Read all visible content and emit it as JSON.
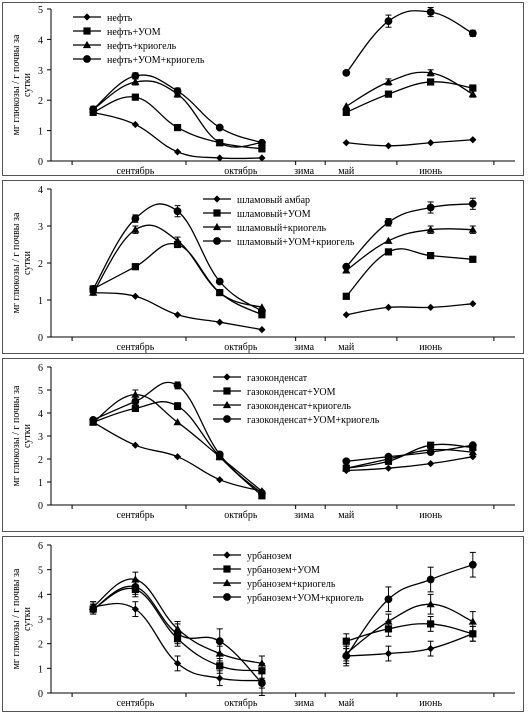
{
  "x_categories": [
    "сентябрь",
    "октябрь",
    "зима",
    "май",
    "июнь"
  ],
  "chart_data": [
    {
      "type": "line",
      "ylabel": "мг глюкозы / г почвы за сутки",
      "ylim": [
        0,
        5
      ],
      "yticks": [
        "0",
        "1",
        "2",
        "3",
        "4",
        "5"
      ],
      "legend_position": "top-left",
      "x": [
        1,
        2,
        3,
        4,
        5,
        7,
        8,
        9,
        10
      ],
      "series": [
        {
          "name": "нефть",
          "marker": "diamond",
          "values": [
            1.6,
            1.2,
            0.3,
            0.1,
            0.1,
            0.6,
            0.5,
            0.6,
            0.7
          ],
          "errors": [
            0,
            0,
            0,
            0,
            0,
            0,
            0,
            0,
            0
          ]
        },
        {
          "name": "нефть+УОМ",
          "marker": "square",
          "values": [
            1.6,
            2.1,
            1.1,
            0.6,
            0.4,
            1.6,
            2.2,
            2.6,
            2.4
          ],
          "errors": [
            0,
            0,
            0,
            0,
            0,
            0,
            0,
            0,
            0
          ]
        },
        {
          "name": "нефть+криогель",
          "marker": "triangle",
          "values": [
            1.7,
            2.6,
            2.2,
            0.6,
            0.6,
            1.8,
            2.6,
            2.9,
            2.2
          ],
          "errors": [
            0.1,
            0.1,
            0.1,
            0,
            0,
            0,
            0.1,
            0.1,
            0.1
          ]
        },
        {
          "name": "нефть+УОМ+криогель",
          "marker": "circle",
          "values": [
            1.7,
            2.8,
            2.3,
            1.1,
            0.6,
            2.9,
            4.6,
            4.9,
            4.2
          ],
          "errors": [
            0,
            0.1,
            0.1,
            0,
            0,
            0,
            0.2,
            0.15,
            0.1
          ]
        }
      ]
    },
    {
      "type": "line",
      "ylabel": "мг глюкозы / г почвы за сутки",
      "ylim": [
        0,
        4
      ],
      "yticks": [
        "0",
        "1",
        "2",
        "3",
        "4"
      ],
      "legend_position": "top-center",
      "x": [
        1,
        2,
        3,
        4,
        5,
        7,
        8,
        9,
        10
      ],
      "series": [
        {
          "name": "шламовый амбар",
          "marker": "diamond",
          "values": [
            1.2,
            1.1,
            0.6,
            0.4,
            0.2,
            0.6,
            0.8,
            0.8,
            0.9
          ],
          "errors": [
            0,
            0,
            0,
            0,
            0,
            0,
            0,
            0,
            0
          ]
        },
        {
          "name": "шламовый+УОМ",
          "marker": "square",
          "values": [
            1.3,
            1.9,
            2.5,
            1.2,
            0.6,
            1.1,
            2.3,
            2.2,
            2.1
          ],
          "errors": [
            0,
            0,
            0,
            0,
            0,
            0,
            0,
            0,
            0
          ]
        },
        {
          "name": "шламовый+криогель",
          "marker": "triangle",
          "values": [
            1.2,
            2.9,
            2.6,
            1.2,
            0.8,
            1.8,
            2.6,
            2.9,
            2.9
          ],
          "errors": [
            0,
            0.1,
            0.1,
            0,
            0,
            0,
            0,
            0.1,
            0.1
          ]
        },
        {
          "name": "шламовый+УОМ+криогель",
          "marker": "circle",
          "values": [
            1.3,
            3.2,
            3.4,
            1.5,
            0.7,
            1.9,
            3.1,
            3.5,
            3.6
          ],
          "errors": [
            0,
            0.1,
            0.15,
            0,
            0,
            0,
            0.1,
            0.15,
            0.15
          ]
        }
      ]
    },
    {
      "type": "line",
      "ylabel": "мг глюкозы / г почвы за сутки",
      "ylim": [
        0,
        6
      ],
      "yticks": [
        "0",
        "1",
        "2",
        "3",
        "4",
        "5",
        "6"
      ],
      "legend_position": "top-center",
      "x": [
        1,
        2,
        3,
        4,
        5,
        7,
        8,
        9,
        10
      ],
      "series": [
        {
          "name": "газоконденсат",
          "marker": "diamond",
          "values": [
            3.6,
            2.6,
            2.1,
            1.1,
            0.6,
            1.5,
            1.6,
            1.8,
            2.1
          ],
          "errors": [
            0,
            0,
            0,
            0,
            0,
            0,
            0,
            0,
            0
          ]
        },
        {
          "name": "газоконденсат+УОМ",
          "marker": "square",
          "values": [
            3.6,
            4.2,
            4.3,
            2.1,
            0.4,
            1.6,
            1.9,
            2.6,
            2.5
          ],
          "errors": [
            0.1,
            0.1,
            0.15,
            0,
            0,
            0,
            0,
            0,
            0
          ]
        },
        {
          "name": "газоконденсат+криогель",
          "marker": "triangle",
          "values": [
            3.6,
            4.8,
            3.6,
            2.1,
            0.6,
            1.6,
            2.0,
            2.4,
            2.3
          ],
          "errors": [
            0,
            0.2,
            0,
            0,
            0,
            0,
            0,
            0,
            0
          ]
        },
        {
          "name": "газоконденсат+УОМ+криогель",
          "marker": "circle",
          "values": [
            3.7,
            4.5,
            5.2,
            2.2,
            0.5,
            1.9,
            2.1,
            2.3,
            2.6
          ],
          "errors": [
            0,
            0.1,
            0.15,
            0,
            0,
            0,
            0,
            0,
            0
          ]
        }
      ]
    },
    {
      "type": "line",
      "ylabel": "мг глюкозы / г почвы за сутки",
      "ylim": [
        0,
        6
      ],
      "yticks": [
        "0",
        "1",
        "2",
        "3",
        "4",
        "5",
        "6"
      ],
      "legend_position": "top-center",
      "x": [
        1,
        2,
        3,
        4,
        5,
        7,
        8,
        9,
        10
      ],
      "series": [
        {
          "name": "урбанозем",
          "marker": "diamond",
          "values": [
            3.5,
            3.4,
            1.2,
            0.6,
            0.5,
            1.5,
            1.6,
            1.8,
            2.4
          ],
          "errors": [
            0.2,
            0.3,
            0.3,
            0.3,
            0.3,
            0.3,
            0.3,
            0.3,
            0.3
          ]
        },
        {
          "name": "урбанозем+УОМ",
          "marker": "square",
          "values": [
            3.4,
            4.2,
            2.2,
            1.1,
            0.9,
            2.1,
            2.6,
            2.8,
            2.4
          ],
          "errors": [
            0.2,
            0.3,
            0.3,
            0.3,
            0.3,
            0.3,
            0.3,
            0.3,
            0.3
          ]
        },
        {
          "name": "урбанозем+криогель",
          "marker": "triangle",
          "values": [
            3.5,
            4.6,
            2.6,
            1.6,
            1.2,
            1.6,
            2.9,
            3.6,
            2.9
          ],
          "errors": [
            0.2,
            0.3,
            0.3,
            0.3,
            0.3,
            0.3,
            0.3,
            0.4,
            0.4
          ]
        },
        {
          "name": "урбанозем+УОМ+криогель",
          "marker": "circle",
          "values": [
            3.4,
            4.3,
            2.4,
            2.1,
            0.4,
            1.5,
            3.8,
            4.6,
            5.2
          ],
          "errors": [
            0.2,
            0.3,
            0.4,
            0.5,
            0.5,
            0.4,
            0.5,
            0.5,
            0.5
          ]
        }
      ]
    }
  ]
}
